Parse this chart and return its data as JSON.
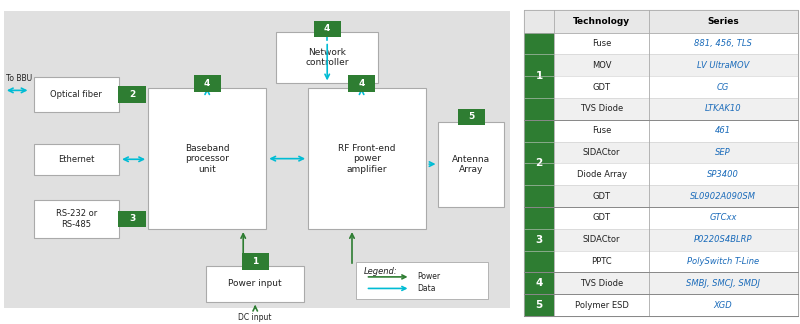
{
  "bg_color": "#e0e0e0",
  "white": "#ffffff",
  "green_dark": "#2e7d32",
  "cyan_arrow": "#00bcd4",
  "green_arrow": "#2e7d32",
  "link_color": "#1a6bba",
  "table_data": {
    "headers": [
      "Technology",
      "Series"
    ],
    "groups": [
      {
        "id": "1",
        "rows": [
          {
            "tech": "Fuse",
            "series": "881, 456, TLS"
          },
          {
            "tech": "MOV",
            "series": "LV UltraMOV"
          },
          {
            "tech": "GDT",
            "series": "CG"
          },
          {
            "tech": "TVS Diode",
            "series": "LTKAK10"
          }
        ]
      },
      {
        "id": "2",
        "rows": [
          {
            "tech": "Fuse",
            "series": "461"
          },
          {
            "tech": "SIDACtor",
            "series": "SEP"
          },
          {
            "tech": "Diode Array",
            "series": "SP3400"
          },
          {
            "tech": "GDT",
            "series": "SL0902A090SM"
          }
        ]
      },
      {
        "id": "3",
        "rows": [
          {
            "tech": "GDT",
            "series": "GTCxx"
          },
          {
            "tech": "SIDACtor",
            "series": "P0220S4BLRP"
          },
          {
            "tech": "PPTC",
            "series": "PolySwitch T-Line"
          }
        ]
      },
      {
        "id": "4",
        "rows": [
          {
            "tech": "TVS Diode",
            "series": "SMBJ, SMCJ, SMDJ"
          }
        ]
      },
      {
        "id": "5",
        "rows": [
          {
            "tech": "Polymer ESD",
            "series": "XGD"
          }
        ]
      }
    ]
  }
}
